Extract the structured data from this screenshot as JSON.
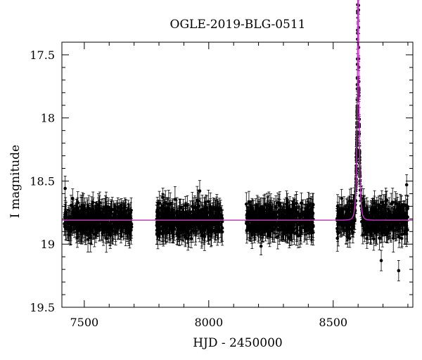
{
  "chart_data": {
    "type": "scatter",
    "title": "OGLE-2019-BLG-0511",
    "xlabel": "HJD - 2450000",
    "ylabel": "I magnitude",
    "xlim": [
      7410,
      8820
    ],
    "ylim": [
      19.5,
      17.4
    ],
    "y_axis_inverted": true,
    "xticks": [
      7500,
      8000,
      8500
    ],
    "yticks": [
      17.5,
      18,
      18.5,
      19,
      19.5
    ],
    "ytick_labels": [
      "17.5",
      "18",
      "18.5",
      "19",
      "19.5"
    ],
    "seasons": [
      {
        "start": 7420,
        "end": 7690
      },
      {
        "start": 7790,
        "end": 8055
      },
      {
        "start": 8150,
        "end": 8420
      },
      {
        "start": 8515,
        "end": 8800
      }
    ],
    "baseline_mag": 18.81,
    "typical_error": 0.09,
    "point_scatter": 0.1,
    "model": {
      "type": "microlensing-single-lens",
      "t0": 8600,
      "tE": 8,
      "u0": 0.1,
      "baseline": 18.81,
      "peak_mag": 17.87
    },
    "outliers": [
      {
        "x": 8795,
        "y": 18.53
      },
      {
        "x": 8763,
        "y": 19.21
      },
      {
        "x": 8693,
        "y": 19.13
      }
    ],
    "colors": {
      "points": "#000000",
      "model": "#cc33cc"
    }
  }
}
